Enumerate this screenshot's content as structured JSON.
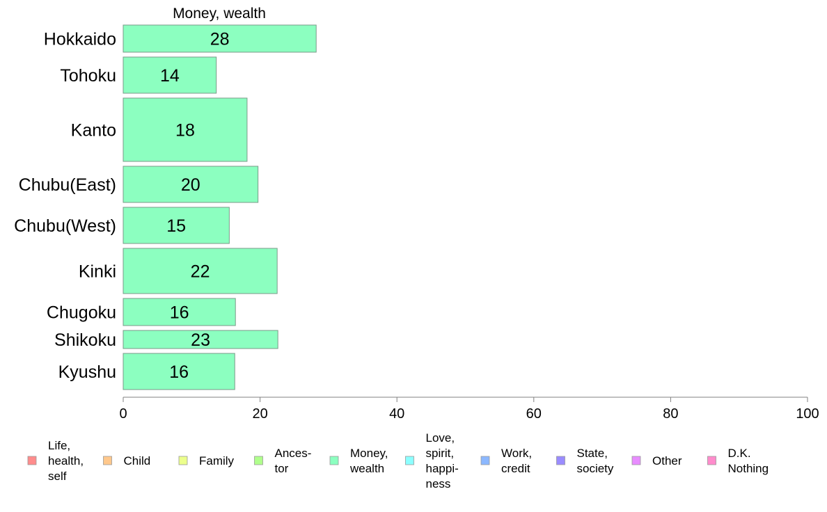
{
  "chart_data": {
    "type": "bar",
    "orientation": "horizontal",
    "title": "Money, wealth",
    "categories": [
      "Hokkaido",
      "Tohoku",
      "Kanto",
      "Chubu(East)",
      "Chubu(West)",
      "Kinki",
      "Chugoku",
      "Shikoku",
      "Kyushu"
    ],
    "values": [
      28,
      14,
      18,
      20,
      15,
      22,
      16,
      23,
      16
    ],
    "bar_values": [
      28.2,
      13.6,
      18.1,
      19.7,
      15.5,
      22.5,
      16.4,
      22.6,
      16.3
    ],
    "weights": [
      3,
      4,
      7,
      4,
      4,
      5,
      3,
      2,
      4
    ],
    "xlim": [
      0,
      100
    ],
    "xticks": [
      0,
      20,
      40,
      60,
      80,
      100
    ],
    "grid": false,
    "bar_color": "#8cffc0",
    "bar_stroke": "#7a9a88",
    "legend": {
      "position": "bottom",
      "items": [
        {
          "label": [
            "Life,",
            "health,",
            "self"
          ],
          "color": "#ff8c8c"
        },
        {
          "label": [
            "Child"
          ],
          "color": "#ffc88c"
        },
        {
          "label": [
            "Family"
          ],
          "color": "#ecff8c"
        },
        {
          "label": [
            "Ances-",
            "tor"
          ],
          "color": "#b0ff8c"
        },
        {
          "label": [
            "Money,",
            "wealth"
          ],
          "color": "#8cffc0"
        },
        {
          "label": [
            "Love,",
            "spirit,",
            "happi-",
            "ness"
          ],
          "color": "#8cffff"
        },
        {
          "label": [
            "Work,",
            "credit"
          ],
          "color": "#8cb8ff"
        },
        {
          "label": [
            "State,",
            "society"
          ],
          "color": "#9a8cff"
        },
        {
          "label": [
            "Other"
          ],
          "color": "#e88cff"
        },
        {
          "label": [
            "D.K.",
            "Nothing"
          ],
          "color": "#ff8ccc"
        }
      ]
    }
  }
}
